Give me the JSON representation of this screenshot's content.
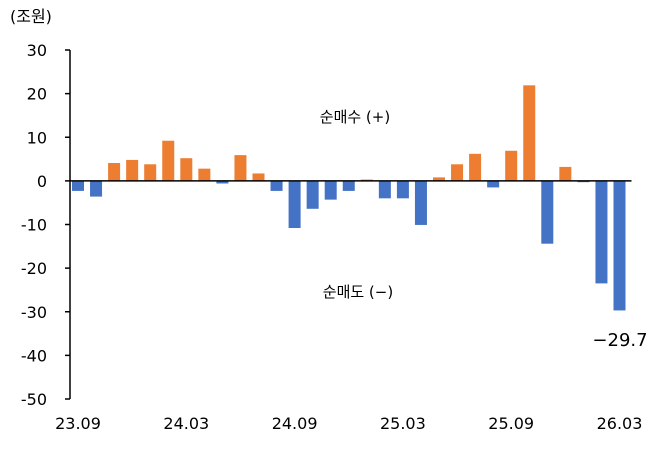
{
  "chart_data": {
    "type": "bar",
    "unit_label": "(조원)",
    "ylim": [
      -50,
      30
    ],
    "y_ticks": [
      30,
      20,
      10,
      0,
      -10,
      -20,
      -30,
      -40,
      -50
    ],
    "x_tick_labels": [
      "23.09",
      "24.03",
      "24.09",
      "25.03",
      "25.09",
      "26.03"
    ],
    "grid": false,
    "categories": [
      "23.09",
      "23.10",
      "23.11",
      "23.12",
      "24.01",
      "24.02",
      "24.03",
      "24.04",
      "24.05",
      "24.06",
      "24.07",
      "24.08",
      "24.09",
      "24.10",
      "24.11",
      "24.12",
      "25.01",
      "25.02",
      "25.03",
      "25.04",
      "25.05",
      "25.06",
      "25.07",
      "25.08",
      "25.09",
      "25.10",
      "25.11",
      "25.12",
      "26.01",
      "26.02",
      "26.03"
    ],
    "values": [
      -2.3,
      -3.6,
      4.1,
      4.8,
      3.8,
      9.2,
      5.2,
      2.8,
      -0.6,
      5.9,
      1.7,
      -2.3,
      -10.8,
      -6.4,
      -4.3,
      -2.3,
      0.3,
      -4.0,
      -4.0,
      -10.1,
      0.8,
      3.8,
      6.2,
      -1.5,
      6.9,
      21.9,
      -14.4,
      3.2,
      -0.3,
      -23.5,
      -29.7
    ],
    "colors": {
      "positive": "#ED7D31",
      "negative": "#4472C4"
    },
    "annotations": [
      {
        "text": "순매수 (+)"
      },
      {
        "text": "순매도 (−)"
      }
    ],
    "data_label": {
      "text": "−29.7"
    }
  }
}
